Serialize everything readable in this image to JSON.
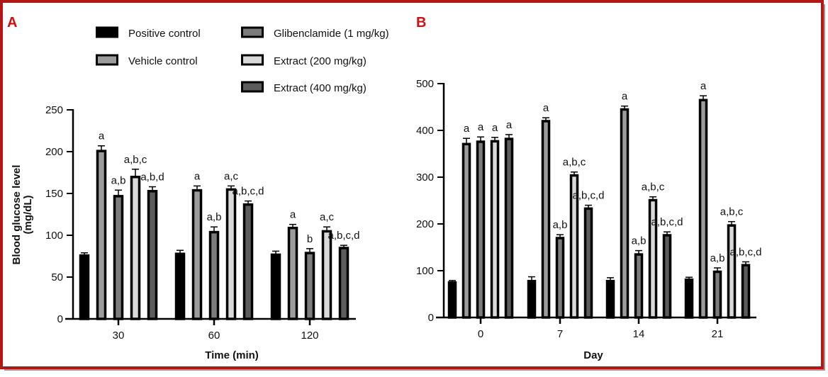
{
  "legend": [
    {
      "name": "Positive control",
      "color": "#000000"
    },
    {
      "name": "Vehicle control",
      "color": "#9c9c9c"
    },
    {
      "name": "Glibenclamide (1 mg/kg)",
      "color": "#7c7c7c"
    },
    {
      "name": "Extract (200 mg/kg)",
      "color": "#d9d9d9"
    },
    {
      "name": "Extract (400 mg/kg)",
      "color": "#5c5c5c"
    }
  ],
  "chart_data": [
    {
      "panel": "A",
      "type": "bar",
      "xlabel": "Time (min)",
      "ylabel": [
        "Blood glucose level",
        "(mg/dL)"
      ],
      "ylim": [
        0,
        250
      ],
      "yticks": [
        0,
        50,
        100,
        150,
        200,
        250
      ],
      "categories": [
        "30",
        "60",
        "120"
      ],
      "series": [
        {
          "name": "Positive control",
          "values": [
            77,
            79,
            78
          ],
          "errors": [
            2,
            3,
            3
          ],
          "labels": [
            "",
            "",
            ""
          ]
        },
        {
          "name": "Vehicle control",
          "values": [
            202,
            155,
            110
          ],
          "errors": [
            5,
            4,
            3
          ],
          "labels": [
            "a",
            "a",
            "a"
          ]
        },
        {
          "name": "Glibenclamide (1 mg/kg)",
          "values": [
            148,
            105,
            80
          ],
          "errors": [
            6,
            5,
            4
          ],
          "labels": [
            "a,b",
            "a,b",
            "b"
          ]
        },
        {
          "name": "Extract (200 mg/kg)",
          "values": [
            171,
            156,
            106
          ],
          "errors": [
            8,
            3,
            4
          ],
          "labels": [
            "a,b,c",
            "a,c",
            "a,c"
          ]
        },
        {
          "name": "Extract (400 mg/kg)",
          "values": [
            154,
            138,
            86
          ],
          "errors": [
            4,
            3,
            2
          ],
          "labels": [
            "a,b,d",
            "a,b,c,d",
            "a,b,c,d"
          ]
        }
      ]
    },
    {
      "panel": "B",
      "type": "bar",
      "xlabel": "Day",
      "ylabel": [],
      "ylim": [
        0,
        500
      ],
      "yticks": [
        0,
        100,
        200,
        300,
        400,
        500
      ],
      "categories": [
        "0",
        "7",
        "14",
        "21"
      ],
      "series": [
        {
          "name": "Positive control",
          "values": [
            77,
            80,
            80,
            83
          ],
          "errors": [
            2,
            7,
            5,
            3
          ],
          "labels": [
            "",
            "",
            "",
            ""
          ]
        },
        {
          "name": "Vehicle control",
          "values": [
            373,
            422,
            447,
            467
          ],
          "errors": [
            10,
            5,
            5,
            7
          ],
          "labels": [
            "a",
            "a",
            "a",
            "a"
          ]
        },
        {
          "name": "Glibenclamide (1 mg/kg)",
          "values": [
            378,
            172,
            137,
            100
          ],
          "errors": [
            8,
            5,
            6,
            6
          ],
          "labels": [
            "a",
            "a,b",
            "a,b",
            "a,b"
          ]
        },
        {
          "name": "Extract (200 mg/kg)",
          "values": [
            379,
            306,
            253,
            199
          ],
          "errors": [
            6,
            5,
            5,
            6
          ],
          "labels": [
            "a",
            "a,b,c",
            "a,b,c",
            "a,b,c"
          ]
        },
        {
          "name": "Extract (400 mg/kg)",
          "values": [
            384,
            235,
            178,
            114
          ],
          "errors": [
            7,
            5,
            5,
            5
          ],
          "labels": [
            "a",
            "a,b,c,d",
            "a,b,c,d",
            "a,b,c,d"
          ]
        }
      ]
    }
  ],
  "colors": {
    "frame": "#b01818",
    "panel_label": "#d01010"
  }
}
